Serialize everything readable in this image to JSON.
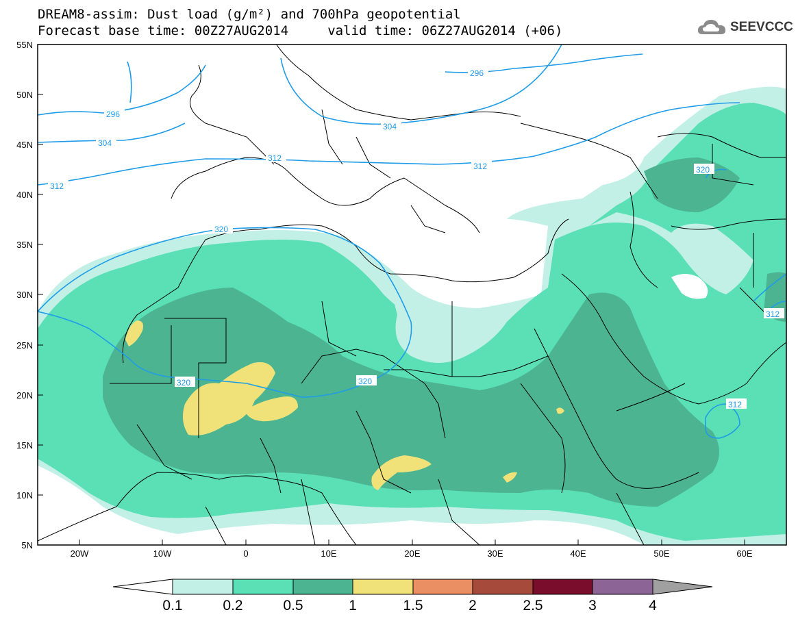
{
  "title": {
    "line1": "DREAM8-assim: Dust load (g/m²) and 700hPa geopotential",
    "line2": "Forecast base time: 00Z27AUG2014     valid time: 06Z27AUG2014 (+06)"
  },
  "logo": {
    "text": "SEEVCCC",
    "icon": "cloud-icon"
  },
  "map": {
    "lat_labels": [
      "55N",
      "50N",
      "45N",
      "40N",
      "35N",
      "30N",
      "25N",
      "20N",
      "15N",
      "10N",
      "5N"
    ],
    "lon_labels": [
      "20W",
      "10W",
      "0",
      "10E",
      "20E",
      "30E",
      "40E",
      "50E",
      "60E"
    ],
    "contour_labels": [
      "296",
      "296",
      "304",
      "304",
      "312",
      "312",
      "312",
      "320",
      "320",
      "320",
      "320",
      "312",
      "312"
    ]
  },
  "colorbar": {
    "labels": [
      "0.1",
      "0.2",
      "0.5",
      "1",
      "1.5",
      "2",
      "2.5",
      "3",
      "4"
    ],
    "colors": [
      "#ffffff",
      "#c3f0e6",
      "#5ae0b4",
      "#4db491",
      "#f0e278",
      "#ea8e64",
      "#a64b3c",
      "#7a0c2c",
      "#8c6496",
      "#a0a0a0"
    ]
  }
}
